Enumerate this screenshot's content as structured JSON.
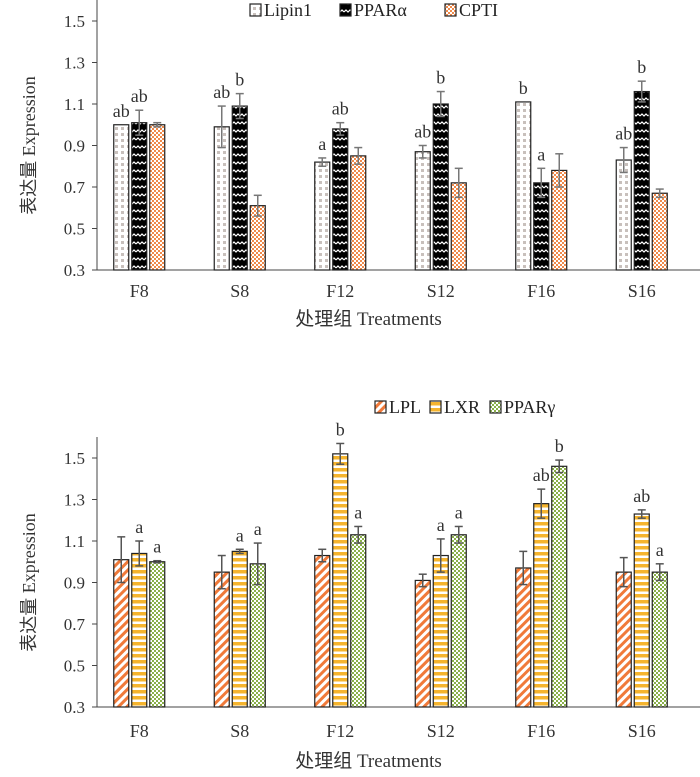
{
  "chart_data": [
    {
      "type": "bar",
      "ylabel": "表达量 Expression",
      "xlabel": "处理组  Treatments",
      "ylim": [
        0.3,
        1.5
      ],
      "yticks": [
        "0.3",
        "0.5",
        "0.7",
        "0.9",
        "1.1",
        "1.3",
        "1.5"
      ],
      "legend_position": "top-center",
      "categories": [
        "F8",
        "S8",
        "F12",
        "S12",
        "F16",
        "S16"
      ],
      "series": [
        {
          "name": "Lipin1",
          "color": "#c8c0bc",
          "pattern": "grid",
          "values": [
            1.0,
            0.99,
            0.82,
            0.87,
            1.11,
            0.83
          ],
          "errors": [
            0,
            0.1,
            0.02,
            0.03,
            0,
            0.06
          ],
          "labels": [
            "ab",
            "ab",
            "a",
            "ab",
            "b",
            "ab"
          ]
        },
        {
          "name": "PPARα",
          "color": "#000000",
          "pattern": "zigzag",
          "values": [
            1.01,
            1.09,
            0.98,
            1.1,
            0.72,
            1.16
          ],
          "errors": [
            0.06,
            0.06,
            0.03,
            0.06,
            0.07,
            0.05
          ],
          "labels": [
            "ab",
            "b",
            "ab",
            "b",
            "a",
            "b"
          ]
        },
        {
          "name": "CPTI",
          "color": "#f08a4b",
          "pattern": "checker",
          "values": [
            1.0,
            0.61,
            0.85,
            0.72,
            0.78,
            0.67
          ],
          "errors": [
            0.01,
            0.05,
            0.04,
            0.07,
            0.08,
            0.02
          ],
          "labels": [
            "",
            "",
            "",
            "",
            "",
            ""
          ]
        }
      ]
    },
    {
      "type": "bar",
      "ylabel": "表达量 Expression",
      "xlabel": "处理组 Treatments",
      "ylim": [
        0.3,
        1.5
      ],
      "yticks": [
        "0.3",
        "0.5",
        "0.7",
        "0.9",
        "1.1",
        "1.3",
        "1.5"
      ],
      "legend_position": "top-right",
      "categories": [
        "F8",
        "S8",
        "F12",
        "S12",
        "F16",
        "S16"
      ],
      "series": [
        {
          "name": "LPL",
          "color": "#f07a3a",
          "pattern": "diagonal",
          "values": [
            1.01,
            0.95,
            1.03,
            0.91,
            0.97,
            0.95
          ],
          "errors": [
            0.11,
            0.08,
            0.03,
            0.03,
            0.08,
            0.07
          ],
          "labels": [
            "",
            "",
            "",
            "",
            "",
            ""
          ]
        },
        {
          "name": "LXR",
          "color": "#f5b42e",
          "pattern": "hstripe",
          "values": [
            1.04,
            1.05,
            1.52,
            1.03,
            1.28,
            1.23
          ],
          "errors": [
            0.06,
            0.01,
            0.05,
            0.08,
            0.07,
            0.02
          ],
          "labels": [
            "a",
            "a",
            "b",
            "a",
            "ab",
            "ab"
          ]
        },
        {
          "name": "PPARγ",
          "color": "#8ab04a",
          "pattern": "checker",
          "values": [
            1.0,
            0.99,
            1.13,
            1.13,
            1.46,
            0.95
          ],
          "errors": [
            0.005,
            0.1,
            0.04,
            0.04,
            0.03,
            0.04
          ],
          "labels": [
            "a",
            "a",
            "a",
            "a",
            "b",
            "a"
          ]
        }
      ]
    }
  ]
}
